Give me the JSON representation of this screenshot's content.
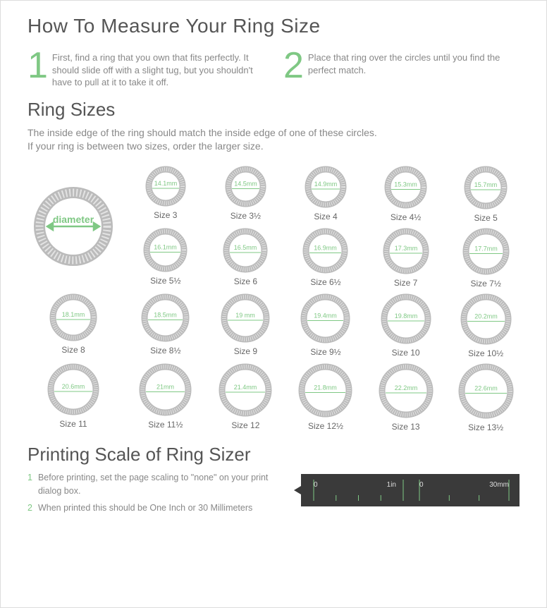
{
  "title": "How To Measure Your Ring Size",
  "steps": [
    {
      "num": "1",
      "text": "First, find a ring that you own that fits perfectly. It should slide off with a slight tug, but you shouldn't have to pull at it to take it off."
    },
    {
      "num": "2",
      "text": "Place that ring over the circles until you find the perfect match."
    }
  ],
  "sizes_heading": "Ring Sizes",
  "sizes_sub": "The inside edge of the ring should match the inside edge of one of these circles.\nIf your ring is between two sizes, order the larger size.",
  "demo_label": "diameter",
  "rings": [
    {
      "mm": "14.1mm",
      "size": "Size 3",
      "d": 60
    },
    {
      "mm": "14.5mm",
      "size": "Size 3½",
      "d": 61
    },
    {
      "mm": "14.9mm",
      "size": "Size 4",
      "d": 62
    },
    {
      "mm": "15.3mm",
      "size": "Size 4½",
      "d": 63
    },
    {
      "mm": "15.7mm",
      "size": "Size 5",
      "d": 64
    },
    {
      "mm": "16.1mm",
      "size": "Size 5½",
      "d": 65
    },
    {
      "mm": "16.5mm",
      "size": "Size 6",
      "d": 66
    },
    {
      "mm": "16.9mm",
      "size": "Size 6½",
      "d": 67
    },
    {
      "mm": "17.3mm",
      "size": "Size 7",
      "d": 68
    },
    {
      "mm": "17.7mm",
      "size": "Size 7½",
      "d": 69
    },
    {
      "mm": "18.1mm",
      "size": "Size 8",
      "d": 70
    },
    {
      "mm": "18.5mm",
      "size": "Size 8½",
      "d": 71
    },
    {
      "mm": "19 mm",
      "size": "Size 9",
      "d": 72
    },
    {
      "mm": "19.4mm",
      "size": "Size 9½",
      "d": 73
    },
    {
      "mm": "19.8mm",
      "size": "Size 10",
      "d": 74
    },
    {
      "mm": "20.2mm",
      "size": "Size 10½",
      "d": 75
    },
    {
      "mm": "20.6mm",
      "size": "Size 11",
      "d": 76
    },
    {
      "mm": "21mm",
      "size": "Size 11½",
      "d": 77
    },
    {
      "mm": "21.4mm",
      "size": "Size 12",
      "d": 78
    },
    {
      "mm": "21.8mm",
      "size": "Size 12½",
      "d": 79
    },
    {
      "mm": "22.2mm",
      "size": "Size 13",
      "d": 80
    },
    {
      "mm": "22.6mm",
      "size": "Size 13½",
      "d": 81
    }
  ],
  "print_heading": "Printing Scale of Ring Sizer",
  "print_steps": [
    {
      "n": "1",
      "t": "Before printing, set  the page scaling to \"none\" on your print dialog box."
    },
    {
      "n": "2",
      "t": "When printed this should be One Inch or 30 Millimeters"
    }
  ],
  "ruler": {
    "inch_zero": "0",
    "inch_one": "1in",
    "mm_zero": "0",
    "mm_thirty": "30mm"
  },
  "colors": {
    "accent": "#7fc884",
    "text": "#666666",
    "muted": "#888888",
    "ring": "#bbbbbb",
    "ruler_bg": "#3a3a3a"
  }
}
